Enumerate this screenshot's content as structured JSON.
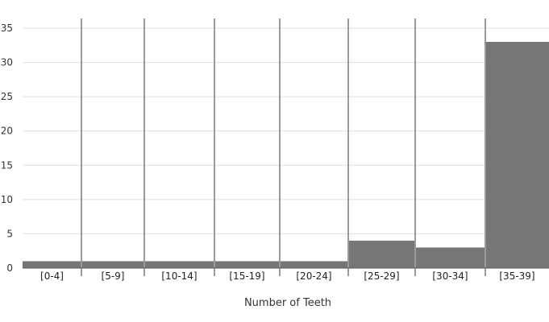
{
  "chart_data": {
    "type": "bar",
    "title": "",
    "xlabel": "Number of Teeth",
    "ylabel": "",
    "categories": [
      "[0-4]",
      "[5-9]",
      "[10-14]",
      "[15-19]",
      "[20-24]",
      "[25-29]",
      "[30-34]",
      "[35-39]"
    ],
    "values": [
      1,
      1,
      1,
      1,
      1,
      4,
      3,
      33
    ],
    "ylim": [
      0,
      35
    ],
    "yticks": [
      0,
      5,
      10,
      15,
      20,
      25,
      30,
      35
    ],
    "grid": true,
    "legend": "none",
    "colors": {
      "bar": "#767676",
      "grid": "#dddddd",
      "separator": "#9a9a9a",
      "axis": "#555555"
    }
  }
}
